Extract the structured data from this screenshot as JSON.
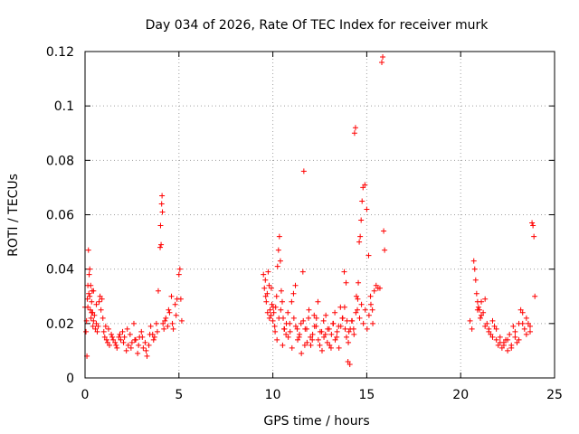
{
  "chart_data": {
    "type": "scatter",
    "title": "Day 034 of 2026, Rate Of TEC Index for receiver murk",
    "xlabel": "GPS time / hours",
    "ylabel": "ROTI / TECUs",
    "xlim": [
      0,
      25
    ],
    "ylim": [
      0,
      0.12
    ],
    "xticks": [
      0,
      5,
      10,
      15,
      20,
      25
    ],
    "xtick_labels": [
      "0",
      "5",
      "10",
      "15",
      "20",
      "25"
    ],
    "yticks": [
      0,
      0.02,
      0.04,
      0.06,
      0.08,
      0.1,
      0.12
    ],
    "ytick_labels": [
      "0",
      "0.02",
      "0.04",
      "0.06",
      "0.08",
      "0.1",
      "0.12"
    ],
    "grid": true,
    "marker": "+",
    "color": "#ff0000",
    "series": [
      {
        "x": [
          0.0,
          0.05,
          0.1,
          0.12,
          0.15,
          0.18,
          0.2,
          0.22,
          0.25,
          0.28,
          0.3,
          0.32,
          0.35,
          0.38,
          0.4,
          0.42,
          0.45,
          0.5,
          0.55,
          0.6,
          0.65,
          0.7,
          0.75,
          0.8,
          0.85,
          0.9,
          0.95,
          1.0,
          1.05,
          1.1,
          1.15,
          1.2,
          1.3,
          1.4,
          1.5,
          1.6,
          1.7,
          1.8,
          1.9,
          2.0,
          2.1,
          2.2,
          2.3,
          2.4,
          2.5,
          2.6,
          2.7,
          2.8,
          2.9,
          3.0,
          3.1,
          3.2,
          3.3,
          3.4,
          3.5,
          3.6,
          3.7,
          3.8,
          3.9,
          4.0,
          4.02,
          4.05,
          4.08,
          4.1,
          4.12,
          4.15,
          4.2,
          4.3,
          4.4,
          4.5,
          4.6,
          4.7,
          4.8,
          4.9,
          5.0,
          5.05,
          5.1,
          5.15,
          0.08,
          0.15,
          0.25,
          0.35,
          0.45,
          0.6,
          1.25,
          1.45,
          1.65,
          1.85,
          2.05,
          2.25,
          2.45,
          2.65,
          2.85,
          3.05,
          3.25,
          3.45,
          3.65,
          3.85,
          4.25,
          4.45,
          4.65,
          4.85
        ],
        "y": [
          0.026,
          0.017,
          0.008,
          0.029,
          0.034,
          0.047,
          0.031,
          0.038,
          0.04,
          0.025,
          0.034,
          0.022,
          0.028,
          0.032,
          0.024,
          0.019,
          0.021,
          0.023,
          0.018,
          0.02,
          0.017,
          0.019,
          0.028,
          0.03,
          0.025,
          0.029,
          0.022,
          0.017,
          0.015,
          0.019,
          0.014,
          0.013,
          0.012,
          0.016,
          0.014,
          0.013,
          0.011,
          0.015,
          0.014,
          0.017,
          0.015,
          0.01,
          0.012,
          0.016,
          0.013,
          0.02,
          0.014,
          0.009,
          0.015,
          0.017,
          0.011,
          0.013,
          0.008,
          0.012,
          0.019,
          0.016,
          0.015,
          0.02,
          0.032,
          0.048,
          0.056,
          0.049,
          0.064,
          0.067,
          0.061,
          0.02,
          0.018,
          0.022,
          0.019,
          0.024,
          0.03,
          0.018,
          0.027,
          0.029,
          0.038,
          0.04,
          0.029,
          0.021,
          0.021,
          0.026,
          0.03,
          0.024,
          0.032,
          0.027,
          0.018,
          0.015,
          0.012,
          0.016,
          0.013,
          0.018,
          0.011,
          0.014,
          0.012,
          0.015,
          0.01,
          0.016,
          0.014,
          0.017,
          0.021,
          0.025,
          0.02,
          0.023
        ]
      },
      {
        "x": [
          9.5,
          9.55,
          9.6,
          9.65,
          9.7,
          9.75,
          9.8,
          9.85,
          9.9,
          9.95,
          10.0,
          10.05,
          10.1,
          10.15,
          10.2,
          10.25,
          10.3,
          10.35,
          10.4,
          10.45,
          10.5,
          10.55,
          10.6,
          10.7,
          10.8,
          10.9,
          11.0,
          11.1,
          11.2,
          11.3,
          11.4,
          11.5,
          11.6,
          11.65,
          11.7,
          11.8,
          11.9,
          12.0,
          12.1,
          12.2,
          12.3,
          12.4,
          12.5,
          12.6,
          12.7,
          12.8,
          12.9,
          13.0,
          13.1,
          13.2,
          13.3,
          13.4,
          13.5,
          13.6,
          13.7,
          13.8,
          13.9,
          14.0,
          14.1,
          14.2,
          14.3,
          14.35,
          14.4,
          14.45,
          14.5,
          14.55,
          14.6,
          14.65,
          14.7,
          14.75,
          14.8,
          14.9,
          15.0,
          15.1,
          15.2,
          15.3,
          15.4,
          15.5,
          15.6,
          15.7,
          15.8,
          15.85,
          15.9,
          15.95,
          10.12,
          10.22,
          10.32,
          10.42,
          10.52,
          10.62,
          10.72,
          10.82,
          10.92,
          11.02,
          11.12,
          11.22,
          11.32,
          11.42,
          11.52,
          11.62,
          11.72,
          11.82,
          11.92,
          12.02,
          12.12,
          12.22,
          12.32,
          12.42,
          12.52,
          12.62,
          12.72,
          12.82,
          12.92,
          13.02,
          13.12,
          13.22,
          13.32,
          13.42,
          13.52,
          13.62,
          13.72,
          13.82,
          13.92,
          14.02,
          14.12,
          14.22,
          14.32,
          14.42,
          14.52,
          14.62,
          14.72,
          14.82,
          14.92,
          15.02,
          15.12,
          15.22,
          15.32,
          9.62,
          9.72,
          9.82,
          9.92,
          10.02,
          13.85,
          13.95,
          14.05
        ],
        "y": [
          0.038,
          0.033,
          0.036,
          0.028,
          0.031,
          0.039,
          0.034,
          0.025,
          0.023,
          0.027,
          0.021,
          0.024,
          0.019,
          0.026,
          0.03,
          0.041,
          0.047,
          0.052,
          0.043,
          0.032,
          0.028,
          0.022,
          0.018,
          0.016,
          0.024,
          0.02,
          0.028,
          0.031,
          0.034,
          0.018,
          0.015,
          0.02,
          0.039,
          0.076,
          0.012,
          0.018,
          0.022,
          0.015,
          0.014,
          0.023,
          0.019,
          0.028,
          0.012,
          0.017,
          0.021,
          0.016,
          0.013,
          0.018,
          0.011,
          0.02,
          0.024,
          0.015,
          0.019,
          0.026,
          0.022,
          0.039,
          0.035,
          0.006,
          0.005,
          0.021,
          0.018,
          0.09,
          0.092,
          0.03,
          0.025,
          0.035,
          0.05,
          0.052,
          0.058,
          0.065,
          0.07,
          0.071,
          0.062,
          0.045,
          0.03,
          0.025,
          0.032,
          0.034,
          0.033,
          0.033,
          0.116,
          0.118,
          0.054,
          0.047,
          0.017,
          0.014,
          0.022,
          0.025,
          0.012,
          0.018,
          0.02,
          0.015,
          0.017,
          0.011,
          0.022,
          0.019,
          0.014,
          0.016,
          0.009,
          0.021,
          0.018,
          0.013,
          0.025,
          0.012,
          0.016,
          0.019,
          0.022,
          0.014,
          0.017,
          0.01,
          0.015,
          0.023,
          0.018,
          0.012,
          0.016,
          0.02,
          0.014,
          0.017,
          0.011,
          0.019,
          0.022,
          0.026,
          0.015,
          0.013,
          0.018,
          0.021,
          0.016,
          0.024,
          0.029,
          0.022,
          0.027,
          0.02,
          0.025,
          0.018,
          0.023,
          0.027,
          0.02,
          0.03,
          0.024,
          0.022,
          0.033,
          0.026,
          0.018,
          0.021,
          0.017
        ]
      },
      {
        "x": [
          20.5,
          20.6,
          20.7,
          20.75,
          20.8,
          20.85,
          20.9,
          20.95,
          21.0,
          21.05,
          21.1,
          21.2,
          21.3,
          21.4,
          21.5,
          21.6,
          21.7,
          21.8,
          21.9,
          22.0,
          22.1,
          22.2,
          22.3,
          22.4,
          22.5,
          22.6,
          22.7,
          22.8,
          22.9,
          23.0,
          23.1,
          23.2,
          23.3,
          23.4,
          23.5,
          23.6,
          23.7,
          23.8,
          23.85,
          23.9,
          23.95,
          20.9,
          21.1,
          21.3,
          21.5,
          21.7,
          21.9,
          22.1,
          22.3,
          22.5,
          22.7,
          22.9,
          23.1,
          23.3,
          23.5,
          23.7
        ],
        "y": [
          0.021,
          0.018,
          0.043,
          0.04,
          0.036,
          0.031,
          0.028,
          0.026,
          0.025,
          0.022,
          0.028,
          0.024,
          0.029,
          0.02,
          0.018,
          0.016,
          0.021,
          0.019,
          0.014,
          0.012,
          0.015,
          0.011,
          0.013,
          0.014,
          0.01,
          0.016,
          0.012,
          0.019,
          0.015,
          0.013,
          0.02,
          0.025,
          0.024,
          0.018,
          0.016,
          0.02,
          0.017,
          0.057,
          0.056,
          0.052,
          0.03,
          0.025,
          0.023,
          0.019,
          0.017,
          0.015,
          0.018,
          0.013,
          0.012,
          0.014,
          0.011,
          0.017,
          0.014,
          0.02,
          0.022,
          0.019
        ]
      }
    ]
  }
}
